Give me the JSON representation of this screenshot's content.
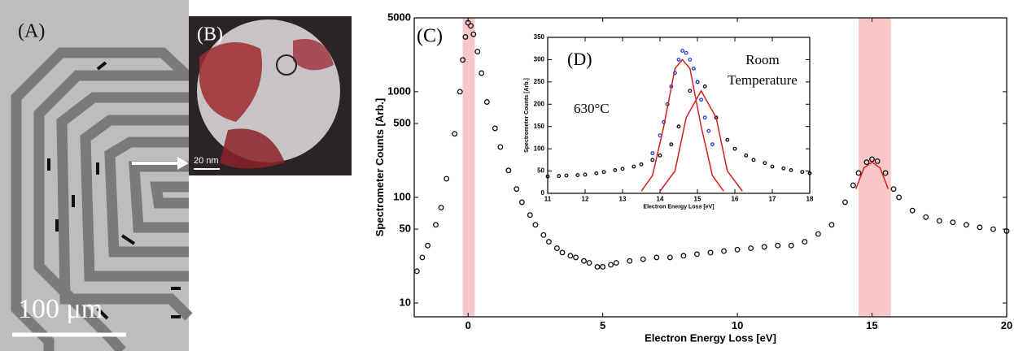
{
  "micrograph": {
    "label_a": "(A)",
    "label_b": "(B)",
    "scale_bar": "100 μm",
    "inset_scale_bar": "20 nm"
  },
  "chart_data": [
    {
      "type": "scatter",
      "xlabel": "Electron Energy Loss [eV]",
      "ylabel": "Spectrometer Counts [Arb.]",
      "log_y": true,
      "xlim": [
        -2,
        20
      ],
      "ylim": [
        7.4,
        5000
      ],
      "xticks": [
        0,
        5,
        10,
        15,
        20
      ],
      "yticks": [
        10,
        50,
        100,
        500,
        1000,
        5000
      ],
      "annotations": [
        "(C)"
      ],
      "spans": [
        [
          -0.2,
          0.25
        ],
        [
          14.5,
          15.7
        ]
      ],
      "span_color": "#f8c8c8",
      "series": [
        {
          "color": "#111111",
          "style": "points",
          "x": [
            -1.9,
            -1.7,
            -1.5,
            -1.2,
            -1,
            -0.8,
            -0.5,
            -0.3,
            -0.2,
            -0.1,
            0,
            0.1,
            0.2,
            0.35,
            0.5,
            0.7,
            1,
            1.2,
            1.5,
            1.8,
            2,
            2.3,
            2.5,
            2.8,
            3,
            3.3,
            3.5,
            3.8,
            4,
            4.3,
            4.5,
            4.8,
            5,
            5.3,
            5.5,
            6,
            6.5,
            7,
            7.5,
            8,
            8.5,
            9,
            9.5,
            10,
            10.5,
            11,
            11.5,
            12,
            12.5,
            13,
            13.5,
            14,
            14.3,
            14.5,
            14.8,
            15,
            15.2,
            15.5,
            15.8,
            16,
            16.5,
            17,
            17.5,
            18,
            18.5,
            19,
            19.5,
            20
          ],
          "values": [
            20,
            27,
            35,
            55,
            80,
            150,
            400,
            1000,
            2000,
            3300,
            4500,
            4200,
            3500,
            2400,
            1500,
            800,
            450,
            300,
            180,
            120,
            90,
            68,
            55,
            44,
            38,
            33,
            30,
            28,
            27,
            25,
            24,
            22,
            22,
            23,
            24,
            25,
            26,
            27,
            27,
            28,
            29,
            30,
            31,
            32,
            33,
            34,
            35,
            35,
            38,
            45,
            55,
            90,
            130,
            170,
            215,
            230,
            220,
            170,
            120,
            100,
            75,
            65,
            60,
            58,
            55,
            52,
            50,
            48
          ]
        },
        {
          "color": "#d42020",
          "style": "line",
          "x": [
            14.4,
            14.7,
            15,
            15.3,
            15.6
          ],
          "values": [
            120,
            190,
            215,
            190,
            120
          ]
        }
      ]
    },
    {
      "type": "scatter",
      "xlabel": "Electron Energy Loss [eV]",
      "ylabel": "Spectrometer Counts [Arb.]",
      "log_y": false,
      "xlim": [
        11,
        18
      ],
      "ylim": [
        0,
        350
      ],
      "xticks": [
        11,
        12,
        13,
        14,
        15,
        16,
        17,
        18
      ],
      "yticks": [
        0,
        50,
        100,
        150,
        200,
        250,
        300,
        350
      ],
      "annotations": [
        "(D)",
        "630°C",
        "Room",
        "Temperature"
      ],
      "series": [
        {
          "color": "#111111",
          "style": "points",
          "x": [
            11,
            11.3,
            11.5,
            11.8,
            12,
            12.3,
            12.5,
            12.8,
            13,
            13.3,
            13.5,
            13.8,
            14,
            14.3,
            14.5,
            14.8,
            15,
            15.2,
            15.5,
            15.8,
            16,
            16.3,
            16.5,
            16.8,
            17,
            17.3,
            17.5,
            17.8,
            18
          ],
          "values": [
            38,
            39,
            40,
            41,
            42,
            45,
            48,
            52,
            55,
            60,
            65,
            75,
            85,
            110,
            150,
            230,
            250,
            240,
            170,
            120,
            100,
            85,
            75,
            68,
            60,
            56,
            52,
            48,
            45
          ]
        },
        {
          "color": "#2a3fd8",
          "style": "points",
          "x": [
            13.8,
            14,
            14.1,
            14.2,
            14.3,
            14.4,
            14.5,
            14.6,
            14.7,
            14.8,
            14.9,
            15,
            15.1,
            15.2,
            15.3,
            15.4
          ],
          "values": [
            90,
            130,
            160,
            200,
            240,
            270,
            300,
            320,
            315,
            300,
            280,
            250,
            210,
            170,
            140,
            110
          ]
        },
        {
          "color": "#d42020",
          "style": "line",
          "x": [
            13.5,
            13.8,
            14.1,
            14.4,
            14.6,
            14.8,
            15.1,
            15.4,
            15.7
          ],
          "values": [
            5,
            40,
            150,
            280,
            300,
            280,
            150,
            40,
            5
          ]
        },
        {
          "color": "#d42020",
          "style": "line",
          "x": [
            14,
            14.4,
            14.7,
            15.1,
            15.5,
            15.8,
            16.2
          ],
          "values": [
            5,
            50,
            170,
            230,
            170,
            50,
            5
          ]
        }
      ]
    }
  ]
}
